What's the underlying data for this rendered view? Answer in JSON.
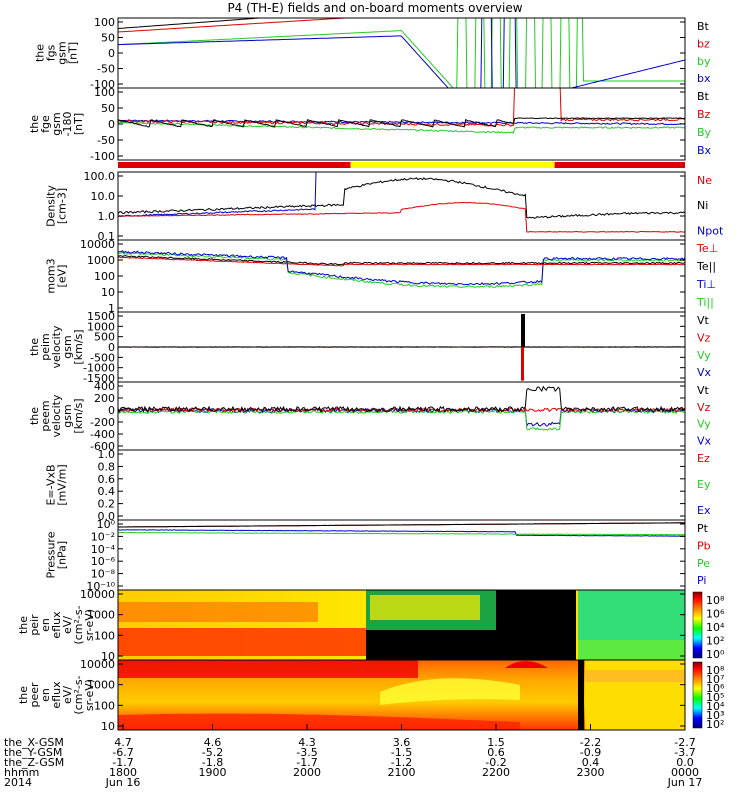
{
  "title": "P4 (TH-E) fields and on-board moments overview",
  "colors": {
    "black": "#000000",
    "red": "#dd0000",
    "green": "#22cc22",
    "blue": "#0000cc",
    "yellow": "#ffff00"
  },
  "chart_data": [
    {
      "type": "line",
      "name": "fgs",
      "ylabel": [
        "the",
        "fgs",
        "gsm",
        "[nT]"
      ],
      "yticks": [
        "100",
        "50",
        "0",
        "-50",
        "-100"
      ],
      "ylim": [
        -100,
        100
      ],
      "legend": [
        "Bt",
        "bz",
        "by",
        "bx"
      ]
    },
    {
      "type": "line",
      "name": "fge",
      "ylabel": [
        "the",
        "fge",
        "gsm",
        "-180",
        "[nT]"
      ],
      "yticks": [
        "100",
        "50",
        "0",
        "-50",
        "-100"
      ],
      "ylim": [
        -130,
        100
      ],
      "legend": [
        "Bt",
        "Bz",
        "By",
        "Bx"
      ]
    },
    {
      "type": "line",
      "name": "density",
      "ylabel": [
        "Density",
        "[cm-3]"
      ],
      "yticks": [
        "100.0",
        "10.0",
        "1.0",
        "0.1"
      ],
      "ylim": [
        0.1,
        300
      ],
      "scale": "log",
      "legend": [
        "Ne",
        "Ni",
        "Npot"
      ]
    },
    {
      "type": "line",
      "name": "temperature",
      "ylabel": [
        "mom3",
        "[eV]"
      ],
      "yticks": [
        "10000",
        "1000",
        "100",
        "10",
        "1"
      ],
      "ylim": [
        1,
        10000
      ],
      "scale": "log",
      "legend": [
        "Te⊥",
        "Te||",
        "Ti⊥",
        "Ti||"
      ]
    },
    {
      "type": "line",
      "name": "peim-velocity",
      "ylabel": [
        "the",
        "peim",
        "velocity",
        "gsm",
        "[km/s]"
      ],
      "yticks": [
        "1500",
        "1000",
        "500",
        "0",
        "-500",
        "-1000",
        "-1500"
      ],
      "ylim": [
        -1500,
        1500
      ],
      "legend": [
        "Vt",
        "Vz",
        "Vy",
        "Vx"
      ]
    },
    {
      "type": "line",
      "name": "peem-velocity",
      "ylabel": [
        "the",
        "peem",
        "velocity",
        "gsm",
        "[km/s]"
      ],
      "yticks": [
        "400",
        "200",
        "0",
        "-200",
        "-400",
        "-600"
      ],
      "ylim": [
        -600,
        400
      ],
      "legend": [
        "Vt",
        "Vz",
        "Vy",
        "Vx"
      ]
    },
    {
      "type": "line",
      "name": "efield",
      "ylabel": [
        "E=-VxB",
        "[mV/m]"
      ],
      "yticks": [
        "1.0",
        "0.8",
        "0.6",
        "0.4",
        "0.2",
        "0.0"
      ],
      "ylim": [
        0,
        1
      ],
      "legend": [
        "Ez",
        "Ey",
        "Ex"
      ]
    },
    {
      "type": "line",
      "name": "pressure",
      "ylabel": [
        "Pressure",
        "[nPa]"
      ],
      "yticks": [
        "10⁰",
        "10⁻²",
        "10⁻⁴",
        "10⁻⁶",
        "10⁻⁸",
        "10⁻¹⁰"
      ],
      "ylim": [
        1e-10,
        1
      ],
      "scale": "log",
      "legend": [
        "Pt",
        "Pb",
        "Pe",
        "Pi"
      ]
    },
    {
      "type": "heatmap",
      "name": "peir-eflux",
      "ylabel": [
        "the",
        "peir",
        "en",
        "eflux",
        "eV/",
        "(cm²-s-",
        "sr-eV)"
      ],
      "yticks": [
        "10000",
        "1000",
        "100",
        "10"
      ],
      "ylim": [
        5,
        25000
      ],
      "scale": "log",
      "colorbar": [
        "10⁸",
        "10⁶",
        "10⁴",
        "10²",
        "10⁰"
      ]
    },
    {
      "type": "heatmap",
      "name": "peer-eflux",
      "ylabel": [
        "the",
        "peer",
        "en",
        "eflux",
        "eV/",
        "(cm²-s-",
        "sr-eV)"
      ],
      "yticks": [
        "10000",
        "1000",
        "100",
        "10"
      ],
      "ylim": [
        5,
        25000
      ],
      "scale": "log",
      "colorbar": [
        "10⁸",
        "10⁷",
        "10⁶",
        "10⁵",
        "10⁴",
        "10³",
        "10²"
      ]
    }
  ],
  "xaxis": {
    "rows": [
      {
        "label": "the_X-GSM",
        "values": [
          "4.7",
          "4.6",
          "4.3",
          "3.6",
          "1.5",
          "-2.2",
          "-2.7"
        ]
      },
      {
        "label": "the_Y-GSM",
        "values": [
          "-6.7",
          "-5.2",
          "-3.5",
          "-1.5",
          "0.6",
          "-0.9",
          "-3.7"
        ]
      },
      {
        "label": "the_Z-GSM",
        "values": [
          "-1.7",
          "-1.8",
          "-1.7",
          "-1.2",
          "-0.2",
          "0.4",
          "0.0"
        ]
      },
      {
        "label": "hhmm",
        "values": [
          "1800",
          "1900",
          "2000",
          "2100",
          "2200",
          "2300",
          "0000"
        ]
      },
      {
        "label": "2014",
        "values": [
          "Jun 16",
          "",
          "",
          "",
          "",
          "",
          "Jun 17"
        ]
      }
    ]
  },
  "mode_bar": [
    {
      "from": 0,
      "to": 0.41,
      "color": "red"
    },
    {
      "from": 0.41,
      "to": 0.77,
      "color": "yellow"
    },
    {
      "from": 0.77,
      "to": 1,
      "color": "red"
    }
  ]
}
